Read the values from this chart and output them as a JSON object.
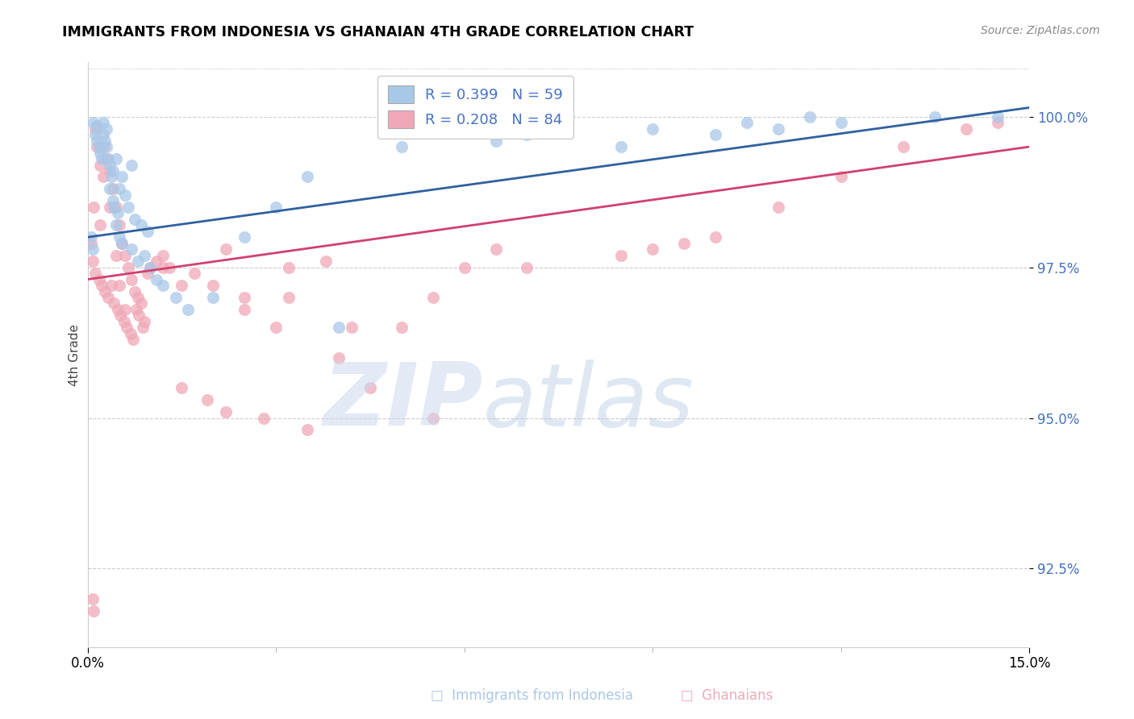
{
  "title": "IMMIGRANTS FROM INDONESIA VS GHANAIAN 4TH GRADE CORRELATION CHART",
  "source": "Source: ZipAtlas.com",
  "ylabel": "4th Grade",
  "ytick_values": [
    92.5,
    95.0,
    97.5,
    100.0
  ],
  "xlim": [
    0.0,
    15.0
  ],
  "ylim": [
    91.2,
    100.9
  ],
  "blue_color": "#a8c8e8",
  "pink_color": "#f0a8b8",
  "blue_line_color": "#3060a0",
  "pink_line_color": "#d04070",
  "blue_x": [
    0.05,
    0.08,
    0.1,
    0.12,
    0.15,
    0.15,
    0.18,
    0.2,
    0.22,
    0.25,
    0.25,
    0.28,
    0.3,
    0.3,
    0.32,
    0.35,
    0.35,
    0.38,
    0.4,
    0.4,
    0.42,
    0.45,
    0.45,
    0.48,
    0.5,
    0.5,
    0.55,
    0.55,
    0.6,
    0.65,
    0.7,
    0.7,
    0.75,
    0.8,
    0.85,
    0.9,
    0.95,
    1.0,
    1.1,
    1.2,
    1.4,
    1.6,
    2.0,
    2.5,
    3.0,
    3.5,
    4.0,
    5.0,
    6.5,
    7.0,
    8.5,
    9.0,
    10.0,
    10.5,
    11.0,
    11.5,
    12.0,
    13.5,
    14.5
  ],
  "blue_y": [
    98.0,
    97.8,
    99.9,
    99.7,
    99.85,
    99.6,
    99.5,
    99.4,
    99.3,
    99.9,
    99.7,
    99.6,
    99.8,
    99.5,
    99.3,
    99.2,
    98.8,
    99.0,
    99.1,
    98.6,
    98.5,
    99.3,
    98.2,
    98.4,
    98.8,
    98.0,
    99.0,
    97.9,
    98.7,
    98.5,
    99.2,
    97.8,
    98.3,
    97.6,
    98.2,
    97.7,
    98.1,
    97.5,
    97.3,
    97.2,
    97.0,
    96.8,
    97.0,
    98.0,
    98.5,
    99.0,
    96.5,
    99.5,
    99.6,
    99.7,
    99.5,
    99.8,
    99.7,
    99.9,
    99.8,
    100.0,
    99.9,
    100.0,
    100.0
  ],
  "pink_x": [
    0.05,
    0.08,
    0.1,
    0.12,
    0.15,
    0.18,
    0.2,
    0.22,
    0.25,
    0.28,
    0.3,
    0.32,
    0.35,
    0.38,
    0.4,
    0.42,
    0.45,
    0.48,
    0.5,
    0.52,
    0.55,
    0.58,
    0.6,
    0.62,
    0.65,
    0.68,
    0.7,
    0.72,
    0.75,
    0.78,
    0.8,
    0.82,
    0.85,
    0.88,
    0.9,
    0.95,
    1.0,
    1.1,
    1.2,
    1.3,
    1.5,
    1.7,
    1.9,
    2.0,
    2.2,
    2.5,
    2.8,
    3.0,
    3.2,
    3.5,
    4.0,
    4.5,
    5.0,
    5.5,
    6.0,
    6.5,
    7.0,
    8.5,
    9.0,
    9.5,
    10.0,
    11.0,
    12.0,
    13.0,
    14.0,
    14.5,
    1.5,
    2.5,
    3.2,
    4.2,
    5.5,
    2.2,
    3.8,
    1.2,
    0.6,
    0.5,
    0.45,
    0.35,
    0.25,
    0.2,
    0.15,
    0.12,
    0.1,
    0.08
  ],
  "pink_y": [
    97.9,
    97.6,
    98.5,
    97.4,
    99.85,
    97.3,
    98.2,
    97.2,
    99.5,
    97.1,
    99.3,
    97.0,
    99.1,
    97.2,
    98.8,
    96.9,
    98.5,
    96.8,
    98.2,
    96.7,
    97.9,
    96.6,
    97.7,
    96.5,
    97.5,
    96.4,
    97.3,
    96.3,
    97.1,
    96.8,
    97.0,
    96.7,
    96.9,
    96.5,
    96.6,
    97.4,
    97.5,
    97.6,
    97.7,
    97.5,
    95.5,
    97.4,
    95.3,
    97.2,
    95.1,
    96.8,
    95.0,
    96.5,
    97.0,
    94.8,
    96.0,
    95.5,
    96.5,
    97.0,
    97.5,
    97.8,
    97.5,
    97.7,
    97.8,
    97.9,
    98.0,
    98.5,
    99.0,
    99.5,
    99.8,
    99.9,
    97.2,
    97.0,
    97.5,
    96.5,
    95.0,
    97.8,
    97.6,
    97.5,
    96.8,
    97.2,
    97.7,
    98.5,
    99.0,
    99.2,
    99.5,
    99.8,
    91.8,
    92.0
  ]
}
